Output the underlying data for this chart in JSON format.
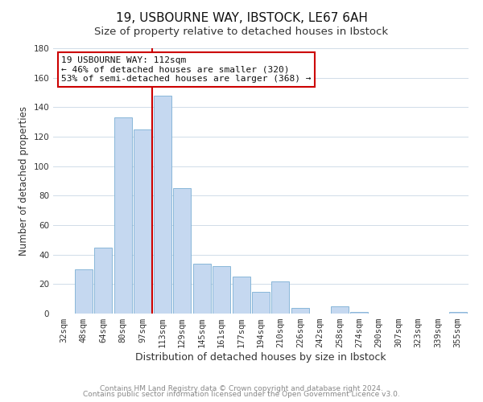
{
  "title_line1": "19, USBOURNE WAY, IBSTOCK, LE67 6AH",
  "title_line2": "Size of property relative to detached houses in Ibstock",
  "xlabel": "Distribution of detached houses by size in Ibstock",
  "ylabel": "Number of detached properties",
  "bar_labels": [
    "32sqm",
    "48sqm",
    "64sqm",
    "80sqm",
    "97sqm",
    "113sqm",
    "129sqm",
    "145sqm",
    "161sqm",
    "177sqm",
    "194sqm",
    "210sqm",
    "226sqm",
    "242sqm",
    "258sqm",
    "274sqm",
    "290sqm",
    "307sqm",
    "323sqm",
    "339sqm",
    "355sqm"
  ],
  "bar_values": [
    0,
    30,
    45,
    133,
    125,
    148,
    85,
    34,
    32,
    25,
    15,
    22,
    4,
    0,
    5,
    1,
    0,
    0,
    0,
    0,
    1
  ],
  "bar_color": "#c5d8f0",
  "bar_edge_color": "#7bafd4",
  "grid_color": "#d0dce8",
  "ylim": [
    0,
    180
  ],
  "yticks": [
    0,
    20,
    40,
    60,
    80,
    100,
    120,
    140,
    160,
    180
  ],
  "property_label": "19 USBOURNE WAY: 112sqm",
  "annotation_line1": "← 46% of detached houses are smaller (320)",
  "annotation_line2": "53% of semi-detached houses are larger (368) →",
  "vline_color": "#cc0000",
  "vline_x_index": 5,
  "annotation_box_facecolor": "#ffffff",
  "annotation_box_edgecolor": "#cc0000",
  "footer_line1": "Contains HM Land Registry data © Crown copyright and database right 2024.",
  "footer_line2": "Contains public sector information licensed under the Open Government Licence v3.0.",
  "title_fontsize": 11,
  "subtitle_fontsize": 9.5,
  "xlabel_fontsize": 9,
  "ylabel_fontsize": 8.5,
  "tick_fontsize": 7.5,
  "annot_fontsize": 8,
  "footer_fontsize": 6.5
}
